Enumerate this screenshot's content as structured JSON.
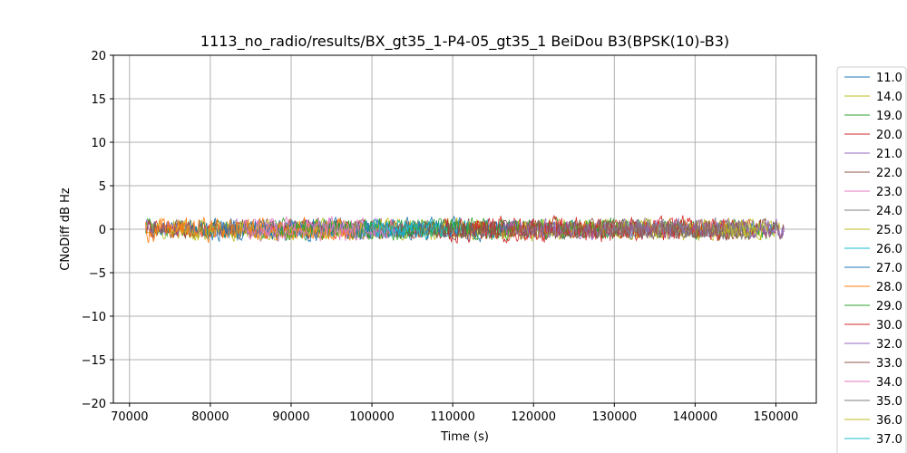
{
  "chart_data": {
    "type": "line",
    "title": "1113_no_radio/results/BX_gt35_1-P4-05_gt35_1 BeiDou B3(BPSK(10)-B3)",
    "xlabel": "Time (s)",
    "ylabel": "CNoDiff dB Hz",
    "xlim": [
      68000,
      155000
    ],
    "ylim": [
      -20,
      20
    ],
    "x_ticks": [
      70000,
      80000,
      90000,
      100000,
      110000,
      120000,
      130000,
      140000,
      150000
    ],
    "y_ticks": [
      -20,
      -15,
      -10,
      -5,
      0,
      5,
      10,
      15,
      20
    ],
    "grid": true,
    "legend_position": "right-outside",
    "noise_note_values": {
      "center": 0,
      "typical_amplitude": 1.5
    },
    "series": [
      {
        "name": "11.0",
        "color": "#1f77b4",
        "x_range": [
          72000,
          150000
        ],
        "amplitude": 0.8
      },
      {
        "name": "14.0",
        "color": "#bcbd22",
        "x_range": [
          72000,
          150500
        ],
        "amplitude": 1.0
      },
      {
        "name": "19.0",
        "color": "#2ca02c",
        "x_range": [
          72000,
          150000
        ],
        "amplitude": 1.0
      },
      {
        "name": "20.0",
        "color": "#d62728",
        "x_range": [
          72000,
          150000
        ],
        "amplitude": 0.9
      },
      {
        "name": "21.0",
        "color": "#9467bd",
        "x_range": [
          72000,
          150000
        ],
        "amplitude": 0.9
      },
      {
        "name": "22.0",
        "color": "#8c564b",
        "x_range": [
          72000,
          151000
        ],
        "amplitude": 1.0
      },
      {
        "name": "23.0",
        "color": "#e377c2",
        "x_range": [
          85000,
          102000
        ],
        "amplitude": 1.2
      },
      {
        "name": "24.0",
        "color": "#7f7f7f",
        "x_range": [
          120000,
          146000
        ],
        "amplitude": 1.0
      },
      {
        "name": "25.0",
        "color": "#bcbd22",
        "x_range": [
          75000,
          148500
        ],
        "amplitude": 1.1
      },
      {
        "name": "26.0",
        "color": "#17becf",
        "x_range": [
          99000,
          112000
        ],
        "amplitude": 1.1
      },
      {
        "name": "27.0",
        "color": "#1f77b4",
        "x_range": [
          77500,
          117000
        ],
        "amplitude": 1.2
      },
      {
        "name": "28.0",
        "color": "#ff7f0e",
        "x_range": [
          72000,
          98000
        ],
        "amplitude": 1.2
      },
      {
        "name": "29.0",
        "color": "#2ca02c",
        "x_range": [
          88000,
          131000
        ],
        "amplitude": 1.1
      },
      {
        "name": "30.0",
        "color": "#d62728",
        "x_range": [
          109000,
          144000
        ],
        "amplitude": 1.3
      },
      {
        "name": "32.0",
        "color": "#9467bd",
        "x_range": [
          116000,
          151000
        ],
        "amplitude": 1.0
      },
      {
        "name": "33.0",
        "color": "#8c564b",
        "x_range": [
          103000,
          146000
        ],
        "amplitude": 1.0
      },
      {
        "name": "34.0",
        "color": "#e377c2",
        "x_range": [
          84000,
          103000
        ],
        "amplitude": 1.0
      },
      {
        "name": "35.0",
        "color": "#7f7f7f",
        "x_range": [
          128000,
          146000
        ],
        "amplitude": 1.0
      },
      {
        "name": "36.0",
        "color": "#bcbd22",
        "x_range": [
          143500,
          149000
        ],
        "amplitude": 1.0
      },
      {
        "name": "37.0",
        "color": "#17becf",
        "x_range": [
          100000,
          108000
        ],
        "amplitude": 0.9
      }
    ]
  }
}
